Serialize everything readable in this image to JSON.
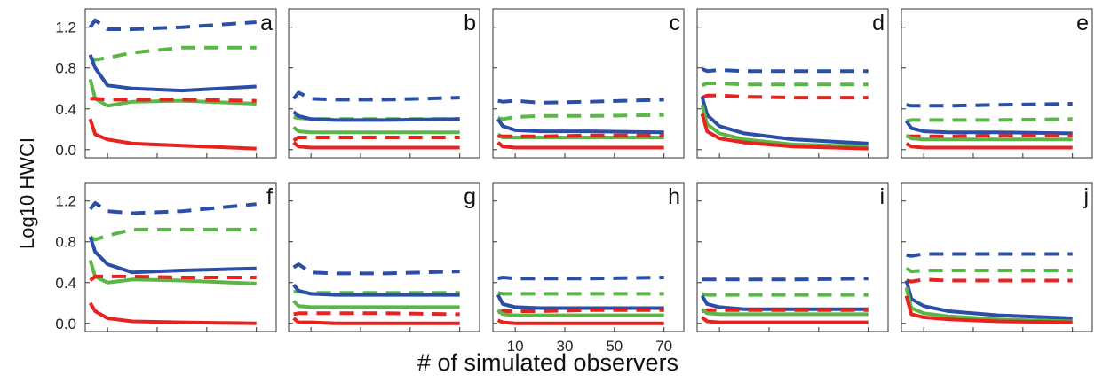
{
  "chart_data": {
    "type": "line",
    "xlabel": "# of simulated observers",
    "ylabel": "Log10  HWCI",
    "ylim": [
      -0.08,
      1.38
    ],
    "xlim": [
      1,
      78
    ],
    "x_ticks": [
      10,
      30,
      50,
      70
    ],
    "y_ticks": [
      "0.0",
      "0.4",
      "0.8",
      "1.2"
    ],
    "y_tick_values": [
      0.0,
      0.4,
      0.8,
      1.2
    ],
    "colors": {
      "blue": "#2b4ea8",
      "green": "#5ab646",
      "red": "#e6231f"
    },
    "line_styles": [
      "solid",
      "dashed"
    ],
    "x": [
      3,
      5,
      10,
      20,
      40,
      70
    ],
    "panels": [
      {
        "label": "a",
        "series": [
          {
            "color": "blue",
            "style": "dashed",
            "values": [
              1.2,
              1.27,
              1.18,
              1.18,
              1.2,
              1.25
            ]
          },
          {
            "color": "green",
            "style": "dashed",
            "values": [
              0.9,
              0.88,
              0.9,
              0.95,
              1.0,
              1.0
            ]
          },
          {
            "color": "blue",
            "style": "solid",
            "values": [
              0.93,
              0.8,
              0.63,
              0.6,
              0.58,
              0.62
            ]
          },
          {
            "color": "green",
            "style": "solid",
            "values": [
              0.69,
              0.5,
              0.43,
              0.47,
              0.48,
              0.45
            ]
          },
          {
            "color": "red",
            "style": "dashed",
            "values": [
              0.5,
              0.5,
              0.49,
              0.49,
              0.49,
              0.48
            ]
          },
          {
            "color": "red",
            "style": "solid",
            "values": [
              0.3,
              0.15,
              0.1,
              0.06,
              0.04,
              0.01
            ]
          }
        ]
      },
      {
        "label": "b",
        "series": [
          {
            "color": "blue",
            "style": "dashed",
            "values": [
              0.5,
              0.56,
              0.5,
              0.49,
              0.49,
              0.51
            ]
          },
          {
            "color": "green",
            "style": "dashed",
            "values": [
              0.32,
              0.31,
              0.3,
              0.3,
              0.3,
              0.3
            ]
          },
          {
            "color": "blue",
            "style": "solid",
            "values": [
              0.37,
              0.33,
              0.3,
              0.29,
              0.29,
              0.3
            ]
          },
          {
            "color": "green",
            "style": "solid",
            "values": [
              0.22,
              0.18,
              0.17,
              0.17,
              0.17,
              0.17
            ]
          },
          {
            "color": "red",
            "style": "dashed",
            "values": [
              0.09,
              0.12,
              0.12,
              0.12,
              0.12,
              0.12
            ]
          },
          {
            "color": "red",
            "style": "solid",
            "values": [
              0.07,
              0.03,
              0.02,
              0.02,
              0.02,
              0.02
            ]
          }
        ]
      },
      {
        "label": "c",
        "series": [
          {
            "color": "blue",
            "style": "dashed",
            "values": [
              0.48,
              0.47,
              0.48,
              0.46,
              0.47,
              0.49
            ]
          },
          {
            "color": "green",
            "style": "dashed",
            "values": [
              0.31,
              0.3,
              0.32,
              0.33,
              0.33,
              0.34
            ]
          },
          {
            "color": "blue",
            "style": "solid",
            "values": [
              0.3,
              0.23,
              0.19,
              0.18,
              0.18,
              0.17
            ]
          },
          {
            "color": "green",
            "style": "solid",
            "values": [
              0.15,
              0.12,
              0.12,
              0.12,
              0.12,
              0.12
            ]
          },
          {
            "color": "red",
            "style": "dashed",
            "values": [
              0.13,
              0.13,
              0.13,
              0.13,
              0.14,
              0.14
            ]
          },
          {
            "color": "red",
            "style": "solid",
            "values": [
              0.07,
              0.03,
              0.02,
              0.02,
              0.02,
              0.02
            ]
          }
        ]
      },
      {
        "label": "d",
        "series": [
          {
            "color": "blue",
            "style": "dashed",
            "values": [
              0.79,
              0.77,
              0.78,
              0.77,
              0.77,
              0.77
            ]
          },
          {
            "color": "green",
            "style": "dashed",
            "values": [
              0.63,
              0.65,
              0.65,
              0.64,
              0.64,
              0.64
            ]
          },
          {
            "color": "red",
            "style": "dashed",
            "values": [
              0.51,
              0.53,
              0.53,
              0.52,
              0.51,
              0.51
            ]
          },
          {
            "color": "blue",
            "style": "solid",
            "values": [
              0.52,
              0.34,
              0.23,
              0.16,
              0.1,
              0.06
            ]
          },
          {
            "color": "green",
            "style": "solid",
            "values": [
              0.44,
              0.25,
              0.16,
              0.1,
              0.05,
              0.03
            ]
          },
          {
            "color": "red",
            "style": "solid",
            "values": [
              0.35,
              0.18,
              0.11,
              0.07,
              0.03,
              0.01
            ]
          }
        ]
      },
      {
        "label": "e",
        "series": [
          {
            "color": "blue",
            "style": "dashed",
            "values": [
              0.44,
              0.43,
              0.43,
              0.43,
              0.44,
              0.45
            ]
          },
          {
            "color": "green",
            "style": "dashed",
            "values": [
              0.28,
              0.29,
              0.29,
              0.29,
              0.29,
              0.3
            ]
          },
          {
            "color": "blue",
            "style": "solid",
            "values": [
              0.28,
              0.21,
              0.18,
              0.17,
              0.17,
              0.16
            ]
          },
          {
            "color": "red",
            "style": "dashed",
            "values": [
              0.13,
              0.13,
              0.13,
              0.13,
              0.14,
              0.14
            ]
          },
          {
            "color": "green",
            "style": "solid",
            "values": [
              0.14,
              0.11,
              0.1,
              0.1,
              0.1,
              0.1
            ]
          },
          {
            "color": "red",
            "style": "solid",
            "values": [
              0.06,
              0.03,
              0.02,
              0.02,
              0.02,
              0.02
            ]
          }
        ]
      },
      {
        "label": "f",
        "series": [
          {
            "color": "blue",
            "style": "dashed",
            "values": [
              1.12,
              1.18,
              1.1,
              1.08,
              1.1,
              1.17
            ]
          },
          {
            "color": "green",
            "style": "dashed",
            "values": [
              0.85,
              0.82,
              0.86,
              0.92,
              0.92,
              0.92
            ]
          },
          {
            "color": "blue",
            "style": "solid",
            "values": [
              0.85,
              0.7,
              0.58,
              0.5,
              0.52,
              0.54
            ]
          },
          {
            "color": "green",
            "style": "solid",
            "values": [
              0.62,
              0.46,
              0.4,
              0.43,
              0.42,
              0.39
            ]
          },
          {
            "color": "red",
            "style": "dashed",
            "values": [
              0.42,
              0.46,
              0.46,
              0.46,
              0.45,
              0.45
            ]
          },
          {
            "color": "red",
            "style": "solid",
            "values": [
              0.2,
              0.12,
              0.05,
              0.02,
              0.01,
              0.0
            ]
          }
        ]
      },
      {
        "label": "g",
        "series": [
          {
            "color": "blue",
            "style": "dashed",
            "values": [
              0.55,
              0.58,
              0.5,
              0.49,
              0.49,
              0.51
            ]
          },
          {
            "color": "green",
            "style": "dashed",
            "values": [
              0.31,
              0.31,
              0.3,
              0.3,
              0.3,
              0.3
            ]
          },
          {
            "color": "blue",
            "style": "solid",
            "values": [
              0.38,
              0.32,
              0.29,
              0.28,
              0.28,
              0.28
            ]
          },
          {
            "color": "green",
            "style": "solid",
            "values": [
              0.22,
              0.17,
              0.16,
              0.16,
              0.16,
              0.16
            ]
          },
          {
            "color": "red",
            "style": "dashed",
            "values": [
              0.09,
              0.1,
              0.1,
              0.1,
              0.1,
              0.09
            ]
          },
          {
            "color": "red",
            "style": "solid",
            "values": [
              0.05,
              0.01,
              0.01,
              0.0,
              0.0,
              0.0
            ]
          }
        ]
      },
      {
        "label": "h",
        "series": [
          {
            "color": "blue",
            "style": "dashed",
            "values": [
              0.44,
              0.45,
              0.44,
              0.44,
              0.44,
              0.45
            ]
          },
          {
            "color": "green",
            "style": "dashed",
            "values": [
              0.3,
              0.29,
              0.29,
              0.29,
              0.29,
              0.29
            ]
          },
          {
            "color": "blue",
            "style": "solid",
            "values": [
              0.28,
              0.19,
              0.16,
              0.15,
              0.15,
              0.15
            ]
          },
          {
            "color": "red",
            "style": "dashed",
            "values": [
              0.11,
              0.12,
              0.12,
              0.12,
              0.13,
              0.13
            ]
          },
          {
            "color": "green",
            "style": "solid",
            "values": [
              0.13,
              0.09,
              0.08,
              0.08,
              0.08,
              0.08
            ]
          },
          {
            "color": "red",
            "style": "solid",
            "values": [
              0.03,
              0.01,
              0.0,
              0.0,
              0.0,
              0.0
            ]
          }
        ]
      },
      {
        "label": "i",
        "series": [
          {
            "color": "blue",
            "style": "dashed",
            "values": [
              0.43,
              0.43,
              0.43,
              0.43,
              0.43,
              0.44
            ]
          },
          {
            "color": "green",
            "style": "dashed",
            "values": [
              0.29,
              0.28,
              0.28,
              0.28,
              0.28,
              0.28
            ]
          },
          {
            "color": "blue",
            "style": "solid",
            "values": [
              0.27,
              0.19,
              0.16,
              0.14,
              0.14,
              0.14
            ]
          },
          {
            "color": "red",
            "style": "dashed",
            "values": [
              0.12,
              0.13,
              0.13,
              0.13,
              0.13,
              0.13
            ]
          },
          {
            "color": "green",
            "style": "solid",
            "values": [
              0.14,
              0.1,
              0.09,
              0.09,
              0.09,
              0.09
            ]
          },
          {
            "color": "red",
            "style": "solid",
            "values": [
              0.06,
              0.02,
              0.01,
              0.01,
              0.01,
              0.01
            ]
          }
        ]
      },
      {
        "label": "j",
        "series": [
          {
            "color": "blue",
            "style": "dashed",
            "values": [
              0.67,
              0.66,
              0.68,
              0.68,
              0.68,
              0.68
            ]
          },
          {
            "color": "green",
            "style": "dashed",
            "values": [
              0.54,
              0.51,
              0.52,
              0.52,
              0.52,
              0.52
            ]
          },
          {
            "color": "red",
            "style": "dashed",
            "values": [
              0.42,
              0.41,
              0.43,
              0.42,
              0.42,
              0.42
            ]
          },
          {
            "color": "blue",
            "style": "solid",
            "values": [
              0.42,
              0.24,
              0.17,
              0.12,
              0.08,
              0.05
            ]
          },
          {
            "color": "green",
            "style": "solid",
            "values": [
              0.35,
              0.15,
              0.1,
              0.07,
              0.04,
              0.02
            ]
          },
          {
            "color": "red",
            "style": "solid",
            "values": [
              0.27,
              0.09,
              0.06,
              0.04,
              0.02,
              0.01
            ]
          }
        ]
      }
    ]
  }
}
